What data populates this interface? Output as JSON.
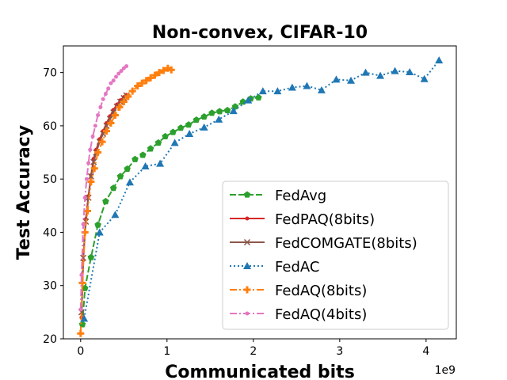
{
  "chart_data": {
    "type": "line",
    "title": "Non-convex, CIFAR-10",
    "xlabel": "Communicated bits",
    "ylabel": "Test Accuracy",
    "x_offset_label": "1e9",
    "xlim": [
      -0.2,
      4.35
    ],
    "ylim": [
      20,
      75
    ],
    "x_ticks": [
      0,
      1,
      2,
      3,
      4
    ],
    "x_tick_labels": [
      "0",
      "1",
      "2",
      "3",
      "4"
    ],
    "y_ticks": [
      20,
      30,
      40,
      50,
      60,
      70
    ],
    "y_tick_labels": [
      "20",
      "30",
      "40",
      "50",
      "60",
      "70"
    ],
    "grid": false,
    "legend_position": "lower-right",
    "series": [
      {
        "name": "FedAvg",
        "color": "#2ca02c",
        "linestyle": "dashed",
        "marker": "pentagon",
        "x": [
          0.02,
          0.05,
          0.12,
          0.2,
          0.29,
          0.38,
          0.46,
          0.54,
          0.63,
          0.72,
          0.81,
          0.9,
          0.98,
          1.07,
          1.16,
          1.25,
          1.34,
          1.43,
          1.52,
          1.61,
          1.7,
          1.79,
          1.88,
          1.97,
          2.06
        ],
        "y": [
          22.7,
          29.5,
          35.3,
          41.4,
          45.8,
          48.3,
          50.5,
          51.9,
          53.7,
          54.5,
          55.7,
          56.8,
          58.0,
          58.8,
          59.6,
          60.2,
          61.1,
          61.7,
          62.4,
          62.7,
          62.9,
          63.6,
          64.5,
          65.1,
          65.3
        ]
      },
      {
        "name": "FedPAQ(8bits)",
        "color": "#d62728",
        "linestyle": "solid",
        "marker": "point",
        "x": [
          0.01,
          0.03,
          0.06,
          0.09,
          0.12,
          0.15,
          0.18,
          0.22,
          0.26,
          0.3,
          0.34,
          0.38,
          0.42,
          0.46,
          0.5,
          0.53
        ],
        "y": [
          24.0,
          34.8,
          42.5,
          46.8,
          50.7,
          53.8,
          55.5,
          57.5,
          59.0,
          60.5,
          61.8,
          63.0,
          64.0,
          64.8,
          65.4,
          65.8
        ]
      },
      {
        "name": "FedCOMGATE(8bits)",
        "color": "#8c564b",
        "linestyle": "solid",
        "marker": "x",
        "x": [
          0.01,
          0.03,
          0.06,
          0.09,
          0.12,
          0.15,
          0.18,
          0.22,
          0.26,
          0.3,
          0.34,
          0.38,
          0.42,
          0.46,
          0.5,
          0.53
        ],
        "y": [
          25.0,
          35.2,
          42.0,
          46.5,
          50.5,
          53.2,
          55.0,
          57.0,
          58.5,
          60.0,
          61.3,
          62.5,
          63.6,
          64.5,
          65.2,
          65.7
        ]
      },
      {
        "name": "FedAC",
        "color": "#1f77b4",
        "linestyle": "dotted",
        "marker": "triangle",
        "x": [
          0.04,
          0.22,
          0.4,
          0.57,
          0.75,
          0.92,
          1.09,
          1.26,
          1.43,
          1.6,
          1.77,
          1.94,
          2.11,
          2.28,
          2.45,
          2.62,
          2.79,
          2.96,
          3.13,
          3.3,
          3.47,
          3.64,
          3.81,
          3.98,
          4.15
        ],
        "y": [
          23.8,
          40.0,
          43.3,
          49.4,
          52.4,
          52.9,
          56.8,
          58.5,
          59.7,
          61.2,
          62.8,
          64.8,
          66.5,
          66.5,
          67.2,
          67.5,
          66.7,
          68.7,
          68.5,
          70.0,
          69.4,
          70.3,
          70.1,
          68.8,
          72.3
        ]
      },
      {
        "name": "FedAQ(8bits)",
        "color": "#ff7f0e",
        "linestyle": "dashdot",
        "marker": "plus",
        "x": [
          0.0,
          0.02,
          0.05,
          0.08,
          0.12,
          0.16,
          0.2,
          0.25,
          0.3,
          0.35,
          0.4,
          0.45,
          0.5,
          0.55,
          0.6,
          0.66,
          0.71,
          0.76,
          0.81,
          0.86,
          0.91,
          0.96,
          1.01,
          1.05
        ],
        "y": [
          21.0,
          30.5,
          40.0,
          44.0,
          49.5,
          52.0,
          55.0,
          57.0,
          59.0,
          60.5,
          62.0,
          63.5,
          64.5,
          65.5,
          66.5,
          67.5,
          68.0,
          68.5,
          69.0,
          69.5,
          70.0,
          70.4,
          70.8,
          70.5
        ]
      },
      {
        "name": "FedAQ(4bits)",
        "color": "#e377c2",
        "linestyle": "dashdot",
        "marker": "point",
        "x": [
          0.0,
          0.01,
          0.03,
          0.05,
          0.07,
          0.09,
          0.11,
          0.14,
          0.17,
          0.2,
          0.23,
          0.26,
          0.29,
          0.32,
          0.35,
          0.38,
          0.41,
          0.44,
          0.47,
          0.5,
          0.53
        ],
        "y": [
          25.5,
          32.0,
          41.5,
          46.5,
          50.0,
          53.0,
          55.5,
          58.0,
          60.0,
          62.0,
          63.5,
          65.0,
          66.0,
          67.0,
          68.0,
          68.5,
          69.2,
          69.8,
          70.3,
          70.8,
          71.2
        ]
      }
    ]
  }
}
